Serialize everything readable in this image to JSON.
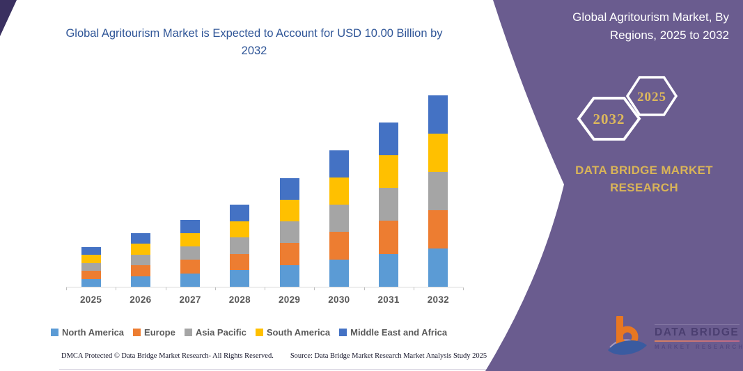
{
  "colors": {
    "panel_purple": "#6A5C8F",
    "corner_accent": "#3A3060",
    "gold": "#D9B458",
    "title_blue": "#2F5597",
    "axis_text": "#595959",
    "logo_orange": "#E87722",
    "logo_blue": "#3A5BA0"
  },
  "chart": {
    "title": "Global Agritourism Market is Expected to Account for USD 10.00 Billion by 2032"
  },
  "chart_data": {
    "type": "bar",
    "stacked": true,
    "title": "Global Agritourism Market is Expected to Account for USD 10.00 Billion by 2032",
    "unit": "USD Billion",
    "categories": [
      "2025",
      "2026",
      "2027",
      "2028",
      "2029",
      "2030",
      "2031",
      "2032"
    ],
    "series": [
      {
        "name": "North America",
        "color": "#5B9BD5",
        "values": [
          0.42,
          0.56,
          0.7,
          0.86,
          1.14,
          1.43,
          1.72,
          2.0
        ]
      },
      {
        "name": "Europe",
        "color": "#ED7D31",
        "values": [
          0.42,
          0.56,
          0.7,
          0.86,
          1.14,
          1.43,
          1.72,
          2.0
        ]
      },
      {
        "name": "Asia Pacific",
        "color": "#A5A5A5",
        "values": [
          0.42,
          0.56,
          0.7,
          0.86,
          1.14,
          1.43,
          1.72,
          2.0
        ]
      },
      {
        "name": "South America",
        "color": "#FFC000",
        "values": [
          0.42,
          0.56,
          0.7,
          0.86,
          1.14,
          1.43,
          1.72,
          2.0
        ]
      },
      {
        "name": "Middle East and Africa",
        "color": "#4472C4",
        "values": [
          0.42,
          0.56,
          0.7,
          0.86,
          1.14,
          1.43,
          1.72,
          2.0
        ]
      }
    ],
    "totals_estimated": [
      2.1,
      2.8,
      3.5,
      4.3,
      5.7,
      7.15,
      8.6,
      10.0
    ],
    "ylim": [
      0,
      10
    ],
    "y_axis_visible": false,
    "grid": false,
    "legend_position": "bottom"
  },
  "panel": {
    "title": "Global Agritourism Market, By Regions, 2025 to 2032",
    "hexagon_back_label": "2032",
    "hexagon_front_label": "2025",
    "brand_text": "DATA BRIDGE MARKET RESEARCH"
  },
  "logo": {
    "mark": "b",
    "line1": "DATA BRIDGE",
    "line2": "MARKET RESEARCH"
  },
  "footer": {
    "dmca": "DMCA Protected © Data Bridge Market Research-  All Rights Reserved.",
    "source": "Source: Data Bridge Market Research  Market Analysis Study 2025"
  }
}
